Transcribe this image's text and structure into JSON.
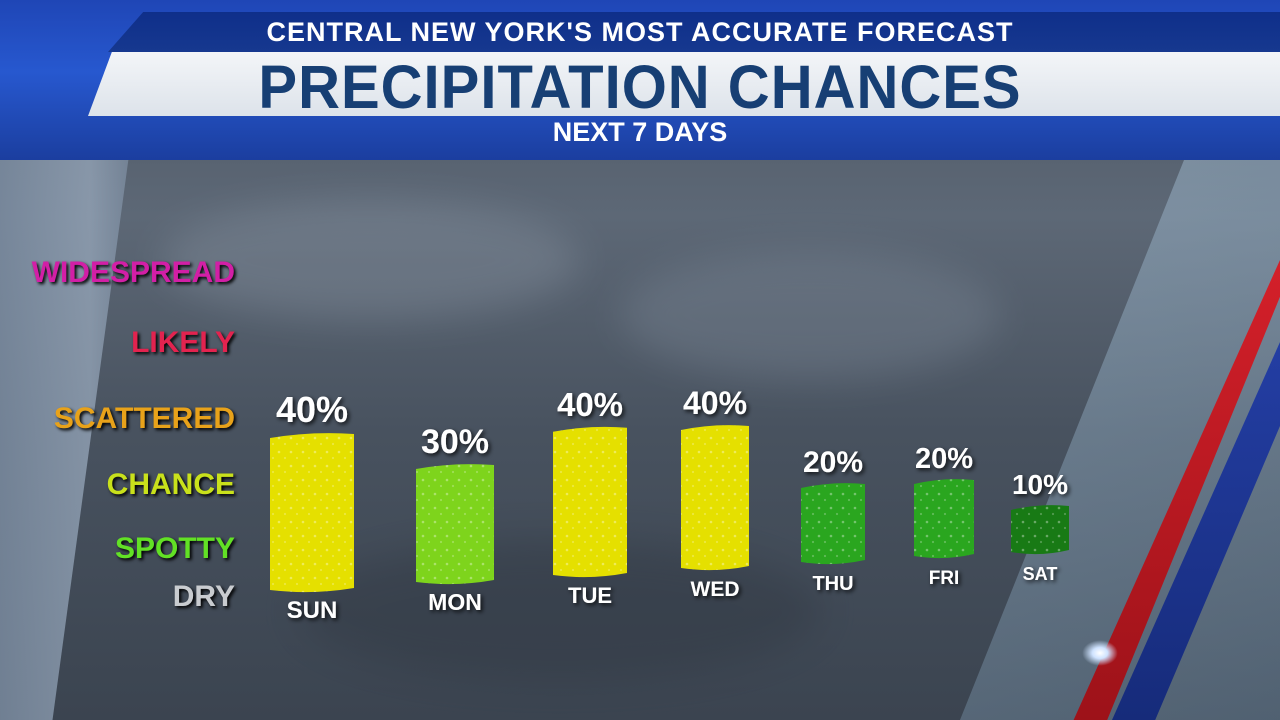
{
  "header": {
    "brand_line": "CENTRAL NEW YORK'S MOST ACCURATE FORECAST",
    "title": "PRECIPITATION CHANCES",
    "subtitle": "NEXT 7 DAYS"
  },
  "levels": [
    {
      "label": "WIDESPREAD",
      "color": "#d21fa6"
    },
    {
      "label": "LIKELY",
      "color": "#e2234f"
    },
    {
      "label": "SCATTERED",
      "color": "#e8a21a"
    },
    {
      "label": "CHANCE",
      "color": "#c9e11b"
    },
    {
      "label": "SPOTTY",
      "color": "#62e125"
    },
    {
      "label": "DRY",
      "color": "#c9ccd0"
    }
  ],
  "chart_data": {
    "type": "bar",
    "categories": [
      "SUN",
      "MON",
      "TUE",
      "WED",
      "THU",
      "FRI",
      "SAT"
    ],
    "values": [
      40,
      30,
      40,
      40,
      20,
      20,
      10
    ],
    "value_labels": [
      "40%",
      "30%",
      "40%",
      "40%",
      "20%",
      "20%",
      "10%"
    ],
    "unit": "%",
    "bar_colors": [
      "#e5e000",
      "#7ed41c",
      "#e5e000",
      "#e5e000",
      "#2aa61f",
      "#2aa61f",
      "#187a15"
    ]
  }
}
